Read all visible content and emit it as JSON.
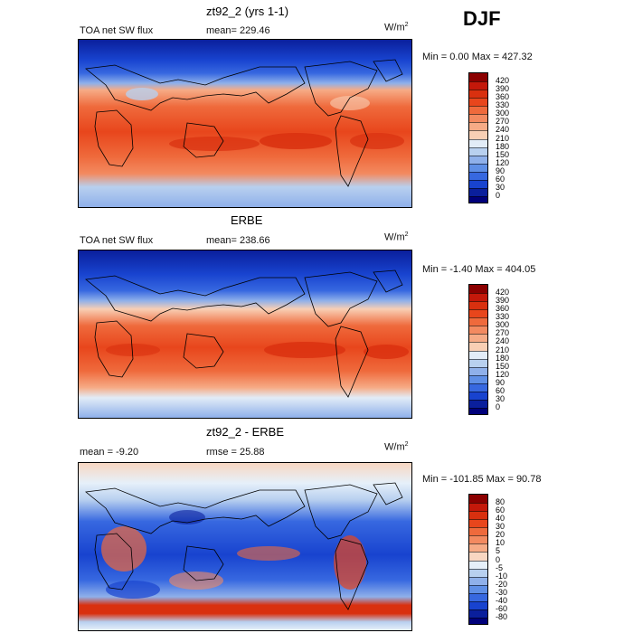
{
  "season": "DJF",
  "panels": [
    {
      "title": "zt92_2 (yrs 1-1)",
      "left_label": "TOA net SW flux",
      "mid_label": "mean= 229.46",
      "units_base": "W/m",
      "units_exp": "2",
      "minmax": "Min =   0.00 Max = 427.32",
      "colorbar": {
        "labels": [
          "420",
          "390",
          "360",
          "330",
          "300",
          "270",
          "240",
          "210",
          "180",
          "150",
          "120",
          "90",
          "60",
          "30",
          "0"
        ],
        "colors": [
          "#8b0000",
          "#c4180a",
          "#d9300f",
          "#e8461c",
          "#ef6a3c",
          "#f38a60",
          "#f6ab86",
          "#f8cfb4",
          "#e2ecf7",
          "#b8d0ef",
          "#8fb0ea",
          "#5f8fe6",
          "#3768e0",
          "#1843cf",
          "#0a1f9c",
          "#00007a"
        ]
      }
    },
    {
      "title": "ERBE",
      "left_label": "TOA net SW flux",
      "mid_label": "mean= 238.66",
      "units_base": "W/m",
      "units_exp": "2",
      "minmax": "Min =  -1.40 Max = 404.05",
      "colorbar": {
        "labels": [
          "420",
          "390",
          "360",
          "330",
          "300",
          "270",
          "240",
          "210",
          "180",
          "150",
          "120",
          "90",
          "60",
          "30",
          "0"
        ],
        "colors": [
          "#8b0000",
          "#c4180a",
          "#d9300f",
          "#e8461c",
          "#ef6a3c",
          "#f38a60",
          "#f6ab86",
          "#f8cfb4",
          "#e2ecf7",
          "#b8d0ef",
          "#8fb0ea",
          "#5f8fe6",
          "#3768e0",
          "#1843cf",
          "#0a1f9c",
          "#00007a"
        ]
      }
    },
    {
      "title": "zt92_2 - ERBE",
      "left_label": "mean =   -9.20",
      "mid_label": "rmse =   25.88",
      "units_base": "W/m",
      "units_exp": "2",
      "minmax": "Min = -101.85 Max =  90.78",
      "colorbar": {
        "labels": [
          "80",
          "60",
          "40",
          "30",
          "20",
          "10",
          "5",
          "0",
          "-5",
          "-10",
          "-20",
          "-30",
          "-40",
          "-60",
          "-80"
        ],
        "colors": [
          "#8b0000",
          "#c4180a",
          "#d9300f",
          "#e8461c",
          "#ef6a3c",
          "#f38a60",
          "#f6ab86",
          "#f8d7c2",
          "#e6f0fa",
          "#b8d0ef",
          "#8fb0ea",
          "#5f8fe6",
          "#3768e0",
          "#1843cf",
          "#0a1f9c",
          "#00007a"
        ]
      }
    }
  ]
}
